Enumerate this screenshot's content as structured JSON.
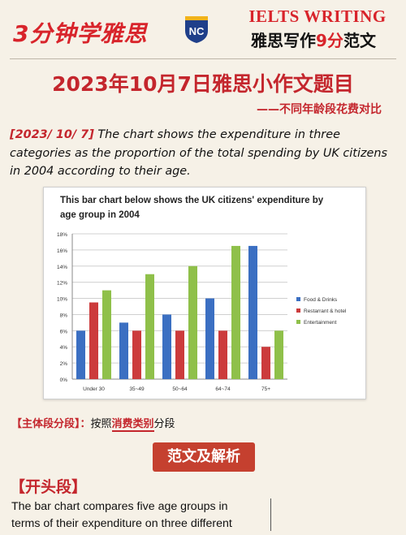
{
  "header": {
    "brand": "3分钟学雅思",
    "logo_text": "NC",
    "ielts": "IELTS WRITING",
    "subtitle_a": "雅思写作",
    "subtitle_hl": "9分",
    "subtitle_b": "范文"
  },
  "main_title": "2023年10月7日雅思小作文题目",
  "subtitle": "——不同年龄段花费对比",
  "prompt": {
    "date": "[2023/ 10/ 7]",
    "text": " The chart shows the expenditure in three categories as the proportion of the total spending by UK citizens in 2004 according to their age."
  },
  "chart_data": {
    "type": "bar",
    "title_line1": "This bar chart below shows the UK citizens' expenditure by",
    "title_line2": "age group in 2004",
    "categories": [
      "Under 30",
      "35~49",
      "50~64",
      "64~74",
      "75+"
    ],
    "series": [
      {
        "name": "Food & Drinks",
        "values": [
          6,
          7,
          8,
          10,
          16.5
        ]
      },
      {
        "name": "Restarrant & hotel",
        "values": [
          9.5,
          6,
          6,
          6,
          4
        ]
      },
      {
        "name": "Entertainment",
        "values": [
          11,
          13,
          14,
          16.5,
          6
        ]
      }
    ],
    "colors": [
      "#3b6fc2",
      "#cc3b3c",
      "#8fc04a"
    ],
    "yticks": [
      "0%",
      "2%",
      "4%",
      "6%",
      "8%",
      "10%",
      "12%",
      "14%",
      "16%",
      "18%"
    ],
    "ylim": [
      0,
      18
    ],
    "grid": true,
    "legend": "right"
  },
  "analysis": {
    "tag": "【主体段分段】：",
    "a": "按照",
    "hl": "消费类别",
    "b": "分段"
  },
  "section_badge": "范文及解析",
  "para_head": "【开头段】",
  "essay": "The bar chart compares five age groups in terms of their expenditure on three different"
}
